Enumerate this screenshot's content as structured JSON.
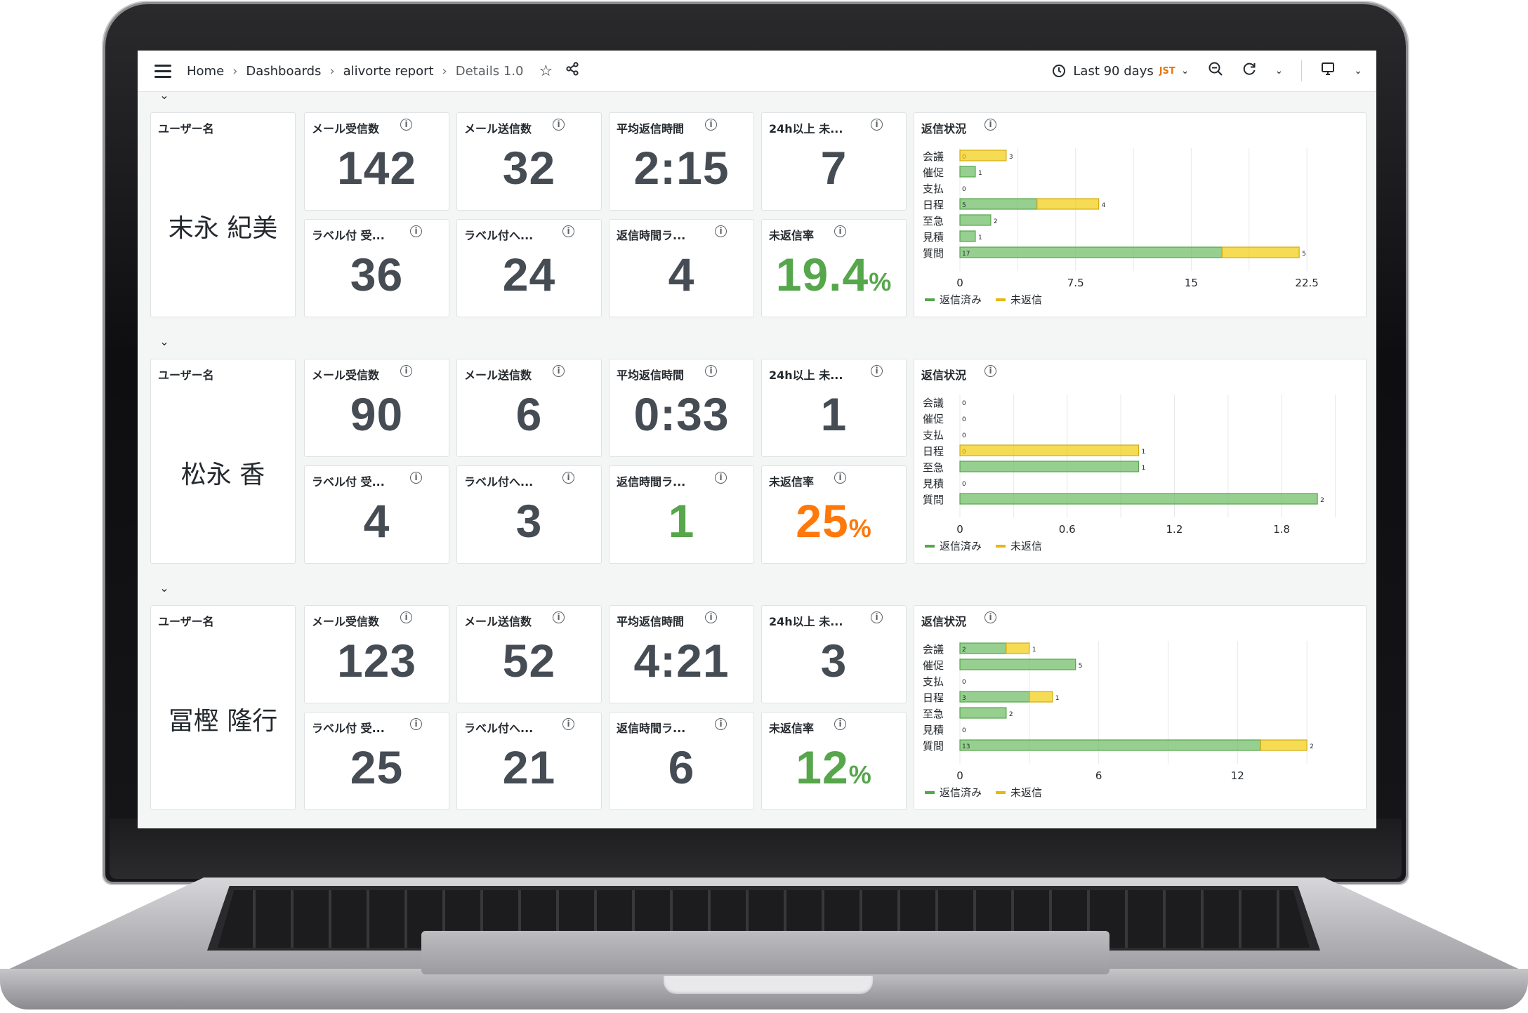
{
  "topbar": {
    "breadcrumbs": [
      "Home",
      "Dashboards",
      "alivorte report",
      "Details 1.0"
    ],
    "time_range": "Last 90 days",
    "timezone": "JST"
  },
  "icons": {
    "menu": "hamburger-icon",
    "star": "star-icon",
    "share": "share-icon",
    "clock": "clock-icon",
    "zoom_out": "zoom-out-icon",
    "refresh": "refresh-icon",
    "tv": "tv-mode-icon",
    "info": "info-icon",
    "collapse": "chevron-down-icon"
  },
  "colors": {
    "replied": "#73bf69",
    "unreplied": "#f2cc0c",
    "rate_green": "#56a64b",
    "rate_orange": "#ff780a"
  },
  "labels": {
    "user": "ユーザー名",
    "received": "メール受信数",
    "sent": "メール送信数",
    "avg_reply": "平均返信時間",
    "over24": "24h以上 未...",
    "label_received": "ラベル付 受...",
    "label_reply": "ラベル付へ...",
    "reply_rank": "返信時間ラ...",
    "unreplied_rate": "未返信率",
    "status": "返信状況",
    "legend_replied": "返信済み",
    "legend_unreplied": "未返信"
  },
  "rows": [
    {
      "user": "末永 紀美",
      "received": "142",
      "sent": "32",
      "avg_reply": "2:15",
      "over24": "7",
      "label_received": "36",
      "label_reply": "24",
      "reply_rank": "4",
      "reply_rank_color": "#464c54",
      "rate": "19.4",
      "rate_unit": "%",
      "rate_color": "#56a64b",
      "chart_data": {
        "type": "bar",
        "orientation": "horizontal",
        "stacked": true,
        "categories": [
          "会議",
          "催促",
          "支払",
          "日程",
          "至急",
          "見積",
          "質問"
        ],
        "series": [
          {
            "name": "返信済み",
            "values": [
              0,
              1,
              0,
              5,
              2,
              1,
              17
            ]
          },
          {
            "name": "未返信",
            "values": [
              3,
              0,
              0,
              4,
              0,
              0,
              5
            ]
          }
        ],
        "xlim": [
          0,
          25.5
        ],
        "xticks": [
          "0",
          "7.5",
          "15",
          "22.5"
        ],
        "xtick_values": [
          0,
          7.5,
          15,
          22.5
        ],
        "legend": "bottom"
      }
    },
    {
      "user": "松永 香",
      "received": "90",
      "sent": "6",
      "avg_reply": "0:33",
      "over24": "1",
      "label_received": "4",
      "label_reply": "3",
      "reply_rank": "1",
      "reply_rank_color": "#56a64b",
      "rate": "25",
      "rate_unit": "%",
      "rate_color": "#ff780a",
      "chart_data": {
        "type": "bar",
        "orientation": "horizontal",
        "stacked": true,
        "categories": [
          "会議",
          "催促",
          "支払",
          "日程",
          "至急",
          "見積",
          "質問"
        ],
        "series": [
          {
            "name": "返信済み",
            "values": [
              0,
              0,
              0,
              0,
              1,
              0,
              2
            ]
          },
          {
            "name": "未返信",
            "values": [
              0,
              0,
              0,
              1,
              0,
              0,
              0
            ]
          }
        ],
        "xlim": [
          0,
          2.2
        ],
        "xticks": [
          "0",
          "0.6",
          "1.2",
          "1.8"
        ],
        "xtick_values": [
          0,
          0.6,
          1.2,
          1.8
        ],
        "legend": "bottom"
      }
    },
    {
      "user": "冨樫 隆行",
      "received": "123",
      "sent": "52",
      "avg_reply": "4:21",
      "over24": "3",
      "label_received": "25",
      "label_reply": "21",
      "reply_rank": "6",
      "reply_rank_color": "#464c54",
      "rate": "12",
      "rate_unit": "%",
      "rate_color": "#56a64b",
      "chart_data": {
        "type": "bar",
        "orientation": "horizontal",
        "stacked": true,
        "categories": [
          "会議",
          "催促",
          "支払",
          "日程",
          "至急",
          "見積",
          "質問"
        ],
        "series": [
          {
            "name": "返信済み",
            "values": [
              2,
              5,
              0,
              3,
              2,
              0,
              13
            ]
          },
          {
            "name": "未返信",
            "values": [
              1,
              0,
              0,
              1,
              0,
              0,
              2
            ]
          }
        ],
        "xlim": [
          0,
          17
        ],
        "xticks": [
          "0",
          "6",
          "12"
        ],
        "xtick_values": [
          0,
          6,
          12
        ],
        "legend": "bottom"
      }
    }
  ]
}
